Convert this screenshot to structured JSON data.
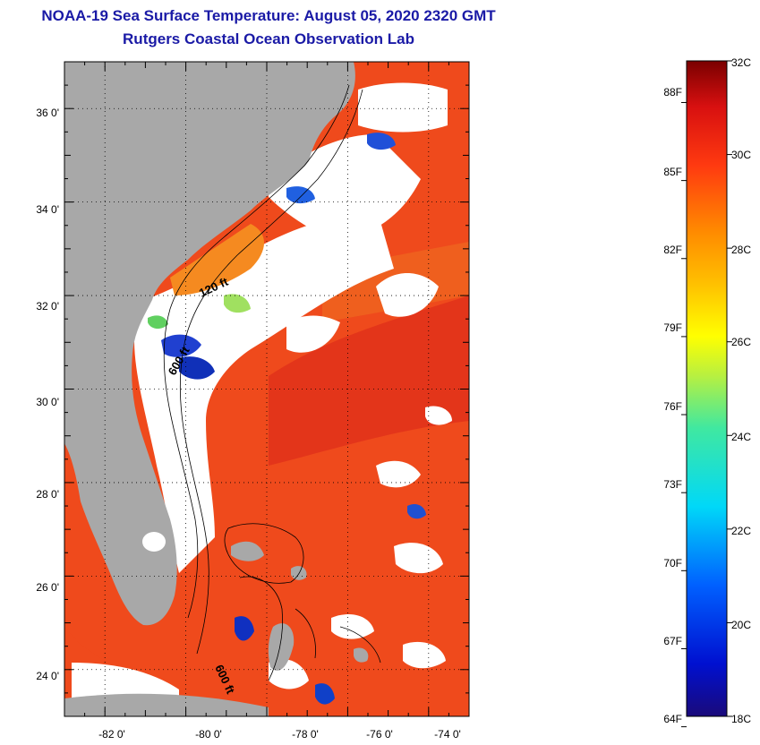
{
  "title": "NOAA-19 Sea Surface Temperature:  August 05, 2020 2320 GMT",
  "subtitle": "Rutgers Coastal Ocean Observation Lab",
  "map": {
    "lat_ticks": [
      "36 0'",
      "34 0'",
      "32 0'",
      "30 0'",
      "28 0'",
      "26 0'",
      "24 0'"
    ],
    "lon_ticks": [
      "-82 0'",
      "-80 0'",
      "-78 0'",
      "-76 0'",
      "-74 0'"
    ],
    "contour_labels": [
      "120 ft",
      "600 ft",
      "600 ft"
    ],
    "colors": {
      "land": "#a8a8a8",
      "cloud": "#ffffff",
      "warm_sea": "#f0401a"
    }
  },
  "colorbar": {
    "fahrenheit_labels": [
      "88F",
      "85F",
      "82F",
      "79F",
      "76F",
      "73F",
      "70F",
      "67F",
      "64F"
    ],
    "celsius_labels": [
      "32C",
      "30C",
      "28C",
      "26C",
      "24C",
      "22C",
      "20C",
      "18C"
    ],
    "range_c": [
      18,
      32
    ]
  }
}
